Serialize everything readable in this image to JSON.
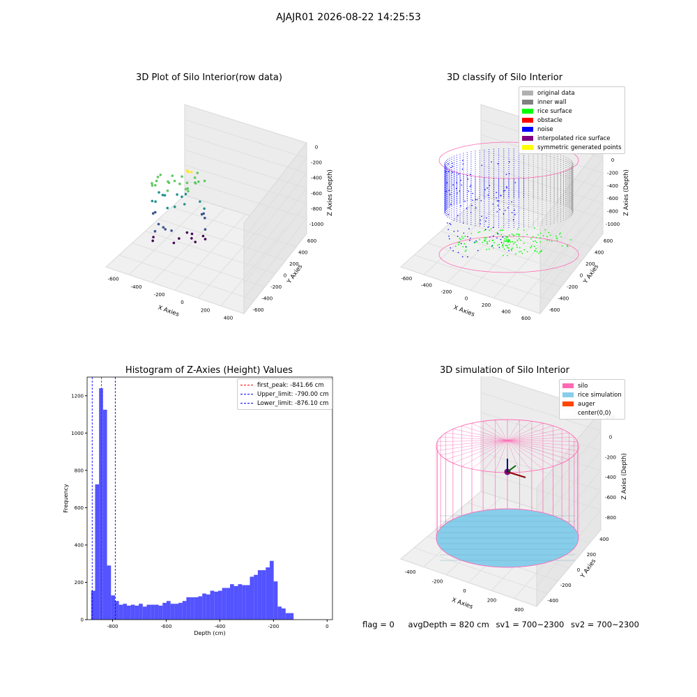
{
  "figure": {
    "suptitle": "AJAJR01 2026-08-22 14:25:53"
  },
  "panels": {
    "raw": {
      "title": "3D Plot of Silo Interior(row data)",
      "xlabel": "X Axies",
      "ylabel": "Y Axies",
      "zlabel": "Z Axies (Depth)",
      "xticks": [
        "-600",
        "-400",
        "-200",
        "0",
        "200",
        "400"
      ],
      "yticks": [
        "-600",
        "-400",
        "-200",
        "0",
        "200",
        "400",
        "600"
      ],
      "zticks": [
        "0",
        "-200",
        "-400",
        "-600",
        "-800",
        "-1000"
      ]
    },
    "classify": {
      "title": "3D classify of Silo Interior",
      "xlabel": "X Axies",
      "ylabel": "Y Axies",
      "zlabel": "Z Axies (Depth)",
      "xticks": [
        "-600",
        "-400",
        "-200",
        "0",
        "200",
        "400",
        "600"
      ],
      "yticks": [
        "-600",
        "-400",
        "-200",
        "0",
        "200",
        "400",
        "600"
      ],
      "zticks": [
        "200",
        "0",
        "-200",
        "-400",
        "-600",
        "-800",
        "-1000"
      ],
      "legend": [
        {
          "label": "original data",
          "color": "#b0b0b0"
        },
        {
          "label": "inner wall",
          "color": "#808080"
        },
        {
          "label": "rice surface",
          "color": "#00ff00"
        },
        {
          "label": "obstacle",
          "color": "#ff0000"
        },
        {
          "label": "noise",
          "color": "#0000ff"
        },
        {
          "label": "interpolated rice surface",
          "color": "#800080"
        },
        {
          "label": "symmetric generated points",
          "color": "#ffff00"
        }
      ]
    },
    "simulation": {
      "title": "3D simulation of Silo Interior",
      "xlabel": "X Axies",
      "ylabel": "Y Axies",
      "zlabel": "Z Axies (Depth)",
      "xticks": [
        "-400",
        "-200",
        "0",
        "200",
        "400"
      ],
      "yticks": [
        "-400",
        "-200",
        "0",
        "200",
        "400"
      ],
      "zticks": [
        "200",
        "0",
        "-200",
        "-400",
        "-600",
        "-800"
      ],
      "legend": [
        {
          "label": "silo",
          "color": "#ff69b4"
        },
        {
          "label": "rice simulation",
          "color": "#87ceeb"
        },
        {
          "label": "auger",
          "color": "#ff4500"
        },
        {
          "label": "center(0,0)",
          "color": "#ffffff"
        }
      ]
    }
  },
  "stats": {
    "flag": "flag = 0",
    "avg_depth": "avgDepth = 820 cm",
    "sv1": "sv1 = 700~2300",
    "sv2": "sv2 = 700~2300"
  },
  "chart_data": {
    "type": "bar",
    "title": "Histogram of Z-Axies (Height) Values",
    "xlabel": "Depth (cm)",
    "ylabel": "Frequency",
    "xlim": [
      -895,
      20
    ],
    "ylim": [
      0,
      1300
    ],
    "xticks": [
      -800,
      -600,
      -400,
      -200,
      0
    ],
    "yticks": [
      0,
      200,
      400,
      600,
      800,
      1000,
      1200
    ],
    "bar_color": "#4a4aff",
    "bin_start": -880,
    "bin_width": 14.8,
    "values": [
      155,
      725,
      1240,
      1125,
      290,
      130,
      100,
      80,
      85,
      75,
      80,
      75,
      85,
      70,
      80,
      80,
      80,
      75,
      90,
      100,
      85,
      85,
      90,
      100,
      120,
      120,
      120,
      125,
      140,
      135,
      155,
      150,
      155,
      170,
      170,
      190,
      180,
      190,
      185,
      185,
      230,
      240,
      265,
      265,
      280,
      315,
      205,
      70,
      60,
      35,
      35
    ],
    "vlines": [
      {
        "label": "first_peak: -841.66 cm",
        "x": -841.66,
        "color": "#ff0000"
      },
      {
        "label": "Upper_limit: -790.00 cm",
        "x": -790.0,
        "color": "#0000ff"
      },
      {
        "label": "Lower_limit: -876.10 cm",
        "x": -876.1,
        "color": "#0000ff"
      }
    ]
  }
}
